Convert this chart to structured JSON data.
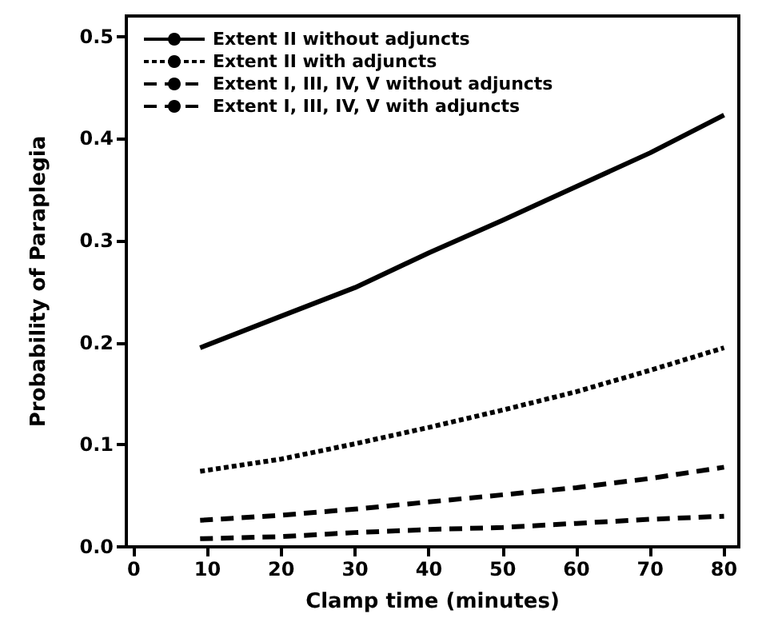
{
  "chart_data": {
    "type": "line",
    "xlabel": "Clamp time (minutes)",
    "ylabel": "Probability of Paraplegia",
    "x": [
      9,
      20,
      30,
      40,
      50,
      60,
      70,
      80
    ],
    "series": [
      {
        "name": "Extent II without adjuncts",
        "color": "#000000",
        "line_style": "solid",
        "values": [
          0.195,
          0.226,
          0.254,
          0.288,
          0.32,
          0.353,
          0.386,
          0.423
        ]
      },
      {
        "name": "Extent II with adjuncts",
        "color": "#000000",
        "line_style": "dotted",
        "values": [
          0.074,
          0.086,
          0.101,
          0.117,
          0.134,
          0.152,
          0.173,
          0.195
        ]
      },
      {
        "name": "Extent I, III, IV, V without adjuncts",
        "color": "#000000",
        "line_style": "dashed",
        "values": [
          0.026,
          0.031,
          0.037,
          0.044,
          0.051,
          0.058,
          0.067,
          0.078
        ]
      },
      {
        "name": "Extent I, III, IV, V with adjuncts",
        "color": "#000000",
        "line_style": "dashed",
        "values": [
          0.008,
          0.01,
          0.014,
          0.017,
          0.019,
          0.023,
          0.027,
          0.03
        ]
      }
    ],
    "xlim": [
      -1,
      82
    ],
    "xticks": [
      0,
      10,
      20,
      30,
      40,
      50,
      60,
      70,
      80
    ],
    "ylim": [
      0,
      0.52
    ],
    "yticks": [
      {
        "value": 0,
        "label": "0.0"
      },
      0.1,
      0.2,
      0.3,
      0.4,
      0.5
    ],
    "grid": false,
    "legend": "top left",
    "marker": "none"
  }
}
